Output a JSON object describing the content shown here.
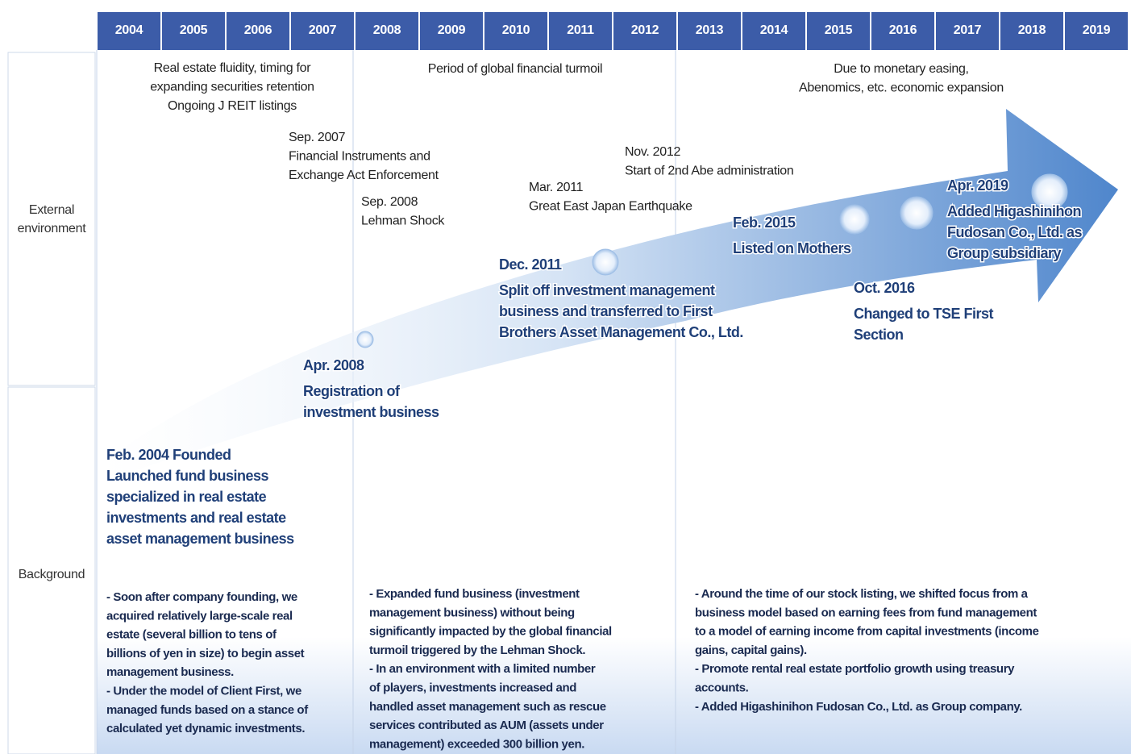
{
  "years": [
    "2004",
    "2005",
    "2006",
    "2007",
    "2008",
    "2009",
    "2010",
    "2011",
    "2012",
    "2013",
    "2014",
    "2015",
    "2016",
    "2017",
    "2018",
    "2019"
  ],
  "row_labels": [
    [
      "External",
      "environment"
    ],
    [
      "Background"
    ]
  ],
  "periods": [
    [
      "Real estate fluidity, timing for",
      "expanding securities retention",
      "Ongoing J REIT listings"
    ],
    [
      "Period of global financial turmoil"
    ],
    [
      "Due to monetary easing,",
      "Abenomics, etc. economic expansion"
    ]
  ],
  "events": [
    [
      "Sep. 2007",
      "Financial Instruments and",
      "Exchange Act Enforcement"
    ],
    [
      "Sep. 2008",
      "Lehman Shock"
    ],
    [
      "Mar. 2011",
      "Great East Japan Earthquake"
    ],
    [
      "Nov. 2012",
      "Start of 2nd Abe administration"
    ]
  ],
  "milestones": [
    [
      "Feb. 2004 Founded",
      "Launched fund business",
      "specialized in real estate",
      "investments and real estate",
      "asset management business"
    ],
    [
      "Apr. 2008",
      "Registration of",
      "investment business"
    ],
    [
      "Dec. 2011",
      "Split off investment management",
      "business and transferred to First",
      "Brothers Asset Management Co., Ltd."
    ],
    [
      "Feb. 2015",
      "Listed on Mothers"
    ],
    [
      "Oct. 2016",
      "Changed to TSE First",
      "Section"
    ],
    [
      "Apr. 2019",
      "Added Higashinihon",
      "Fudosan Co., Ltd. as",
      "Group subsidiary"
    ]
  ],
  "background": [
    [
      "- Soon after company founding, we",
      "acquired relatively large-scale real",
      "estate (several billion to tens of",
      "billions of yen in size) to begin asset",
      "management business.",
      "- Under the model of Client First, we",
      "managed funds based on a stance of",
      "calculated yet dynamic investments."
    ],
    [
      "- Expanded fund business (investment",
      "management business) without being",
      "significantly impacted by the global financial",
      "turmoil triggered by the Lehman Shock.",
      "- In an environment with a limited number",
      "of players, investments increased and",
      "handled asset management such as rescue",
      "services contributed as AUM (assets under",
      "management) exceeded 300 billion yen."
    ],
    [
      "- Around the time of our stock listing, we shifted focus from a",
      "business model based on earning fees from fund management",
      "to a model of earning income from capital investments (income",
      "gains, capital gains).",
      "- Promote rental real estate portfolio growth using treasury",
      "accounts.",
      "- Added Higashinihon Fudosan Co., Ltd. as Group company."
    ]
  ]
}
